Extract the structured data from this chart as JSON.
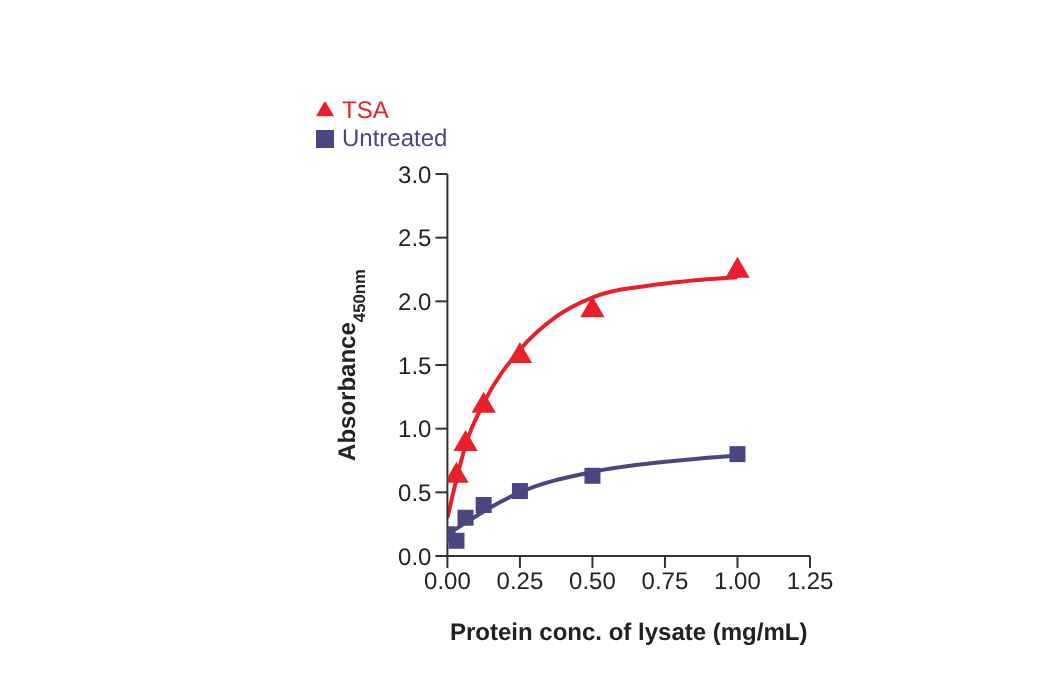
{
  "chart_data": {
    "type": "scatter",
    "xlabel": "Protein conc. of lysate (mg/mL)",
    "ylabel": "Absorbance$_{450nm}$",
    "x": [
      0,
      0.03125,
      0.0625,
      0.125,
      0.25,
      0.5,
      1.0
    ],
    "series": [
      {
        "name": "TSA",
        "color": "#e8202a",
        "marker": "triangle",
        "values": [
          null,
          0.63,
          0.88,
          1.18,
          1.57,
          1.93,
          2.24
        ]
      },
      {
        "name": "Untreated",
        "color": "#4a4680",
        "marker": "square",
        "values": [
          0.17,
          0.12,
          0.3,
          0.4,
          0.51,
          0.63,
          0.8
        ]
      },
      {
        "type": "line",
        "color": "#e8202a",
        "marker": "none",
        "x": [
          0,
          0.03125,
          0.0625,
          0.125,
          0.25,
          0.375,
          0.5,
          0.75,
          1.0
        ],
        "values": [
          0.3,
          0.6,
          0.87,
          1.2,
          1.62,
          1.88,
          2.03,
          2.14,
          2.19
        ]
      },
      {
        "type": "line",
        "color": "#4a4680",
        "marker": "none",
        "x": [
          0,
          0.0625,
          0.125,
          0.25,
          0.5,
          0.75,
          1.0
        ],
        "values": [
          0.17,
          0.26,
          0.35,
          0.5,
          0.66,
          0.74,
          0.79
        ]
      }
    ],
    "xlim": [
      0,
      1.25
    ],
    "xticks": [
      {
        "value": 0,
        "label": "0.00"
      },
      {
        "value": 0.25,
        "label": "0.25"
      },
      {
        "value": 0.5,
        "label": "0.50"
      },
      {
        "value": 0.75,
        "label": "0.75"
      },
      {
        "value": 1,
        "label": "1.00"
      },
      {
        "value": 1.25,
        "label": "1.25"
      }
    ],
    "ylim": [
      0,
      3
    ],
    "yticks": [
      {
        "value": 0,
        "label": "0.0"
      },
      {
        "value": 0.5,
        "label": "0.5"
      },
      {
        "value": 1,
        "label": "1.0"
      },
      {
        "value": 1.5,
        "label": "1.5"
      },
      {
        "value": 2,
        "label": "2.0"
      },
      {
        "value": 2.5,
        "label": "2.5"
      },
      {
        "value": 3,
        "label": "3.0"
      }
    ],
    "grid": false,
    "legend": "top left"
  }
}
